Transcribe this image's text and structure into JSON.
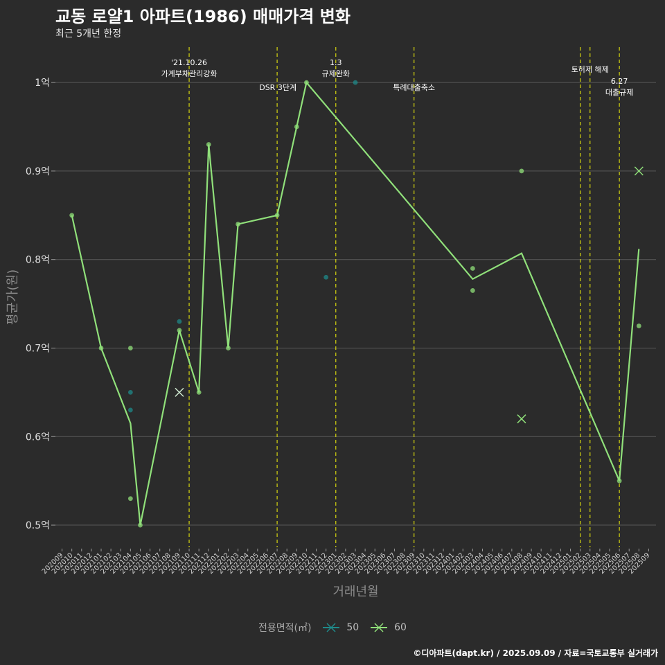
{
  "header": {
    "title": "교동 로얄1 아파트(1986) 매매가격 변화",
    "subtitle": "최근 5개년 한정"
  },
  "caption": "©디아파트(dapt.kr) / 2025.09.09 / 자료=국토교통부 실거래가",
  "legend": {
    "title": "전용면적(㎡)",
    "items": [
      {
        "label": "50",
        "color": "#1f8a8a"
      },
      {
        "label": "60",
        "color": "#90e07a"
      }
    ]
  },
  "chart_data": {
    "type": "line",
    "xlabel": "거래년월",
    "ylabel": "평균가(원)",
    "categories": [
      "202009",
      "202010",
      "202011",
      "202012",
      "202101",
      "202102",
      "202103",
      "202104",
      "202105",
      "202106",
      "202107",
      "202108",
      "202109",
      "202110",
      "202111",
      "202112",
      "202201",
      "202202",
      "202203",
      "202204",
      "202205",
      "202206",
      "202207",
      "202208",
      "202209",
      "202210",
      "202211",
      "202212",
      "202301",
      "202302",
      "202303",
      "202304",
      "202305",
      "202306",
      "202307",
      "202308",
      "202309",
      "202310",
      "202311",
      "202312",
      "202401",
      "202402",
      "202403",
      "202404",
      "202405",
      "202406",
      "202407",
      "202408",
      "202409",
      "202410",
      "202411",
      "202412",
      "202501",
      "202502",
      "202503",
      "202504",
      "202505",
      "202506",
      "202507",
      "202508",
      "202509"
    ],
    "ylim": [
      0.475,
      1.04
    ],
    "yticks": [
      {
        "value": 0.5,
        "label": "0.5억"
      },
      {
        "value": 0.6,
        "label": "0.6억"
      },
      {
        "value": 0.7,
        "label": "0.7억"
      },
      {
        "value": 0.8,
        "label": "0.8억"
      },
      {
        "value": 0.9,
        "label": "0.9억"
      },
      {
        "value": 1.0,
        "label": "1억"
      }
    ],
    "series": [
      {
        "name": "60",
        "color": "#90e07a",
        "line": [
          {
            "x": "202010",
            "y": 0.85
          },
          {
            "x": "202101",
            "y": 0.7
          },
          {
            "x": "202104",
            "y": 0.615
          },
          {
            "x": "202105",
            "y": 0.5
          },
          {
            "x": "202109",
            "y": 0.72
          },
          {
            "x": "202111",
            "y": 0.65
          },
          {
            "x": "202112",
            "y": 0.93
          },
          {
            "x": "202202",
            "y": 0.7
          },
          {
            "x": "202203",
            "y": 0.84
          },
          {
            "x": "202207",
            "y": 0.85
          },
          {
            "x": "202210",
            "y": 1.0
          },
          {
            "x": "202403",
            "y": 0.778
          },
          {
            "x": "202408",
            "y": 0.807
          },
          {
            "x": "202506",
            "y": 0.55
          },
          {
            "x": "202508",
            "y": 0.812
          }
        ],
        "points": [
          {
            "x": "202010",
            "y": 0.85
          },
          {
            "x": "202101",
            "y": 0.7
          },
          {
            "x": "202104",
            "y": 0.7
          },
          {
            "x": "202104",
            "y": 0.53
          },
          {
            "x": "202105",
            "y": 0.5
          },
          {
            "x": "202109",
            "y": 0.72
          },
          {
            "x": "202111",
            "y": 0.65
          },
          {
            "x": "202112",
            "y": 0.93
          },
          {
            "x": "202202",
            "y": 0.7
          },
          {
            "x": "202203",
            "y": 0.84
          },
          {
            "x": "202207",
            "y": 0.85
          },
          {
            "x": "202209",
            "y": 0.95
          },
          {
            "x": "202210",
            "y": 1.0
          },
          {
            "x": "202403",
            "y": 0.79
          },
          {
            "x": "202403",
            "y": 0.765
          },
          {
            "x": "202408",
            "y": 0.9
          },
          {
            "x": "202506",
            "y": 0.55
          },
          {
            "x": "202508",
            "y": 0.725
          }
        ],
        "cancelled": [
          {
            "x": "202408",
            "y": 0.62
          },
          {
            "x": "202508",
            "y": 0.9
          }
        ]
      },
      {
        "name": "50",
        "color": "#1f8a8a",
        "points": [
          {
            "x": "202104",
            "y": 0.65
          },
          {
            "x": "202104",
            "y": 0.63
          },
          {
            "x": "202109",
            "y": 0.73
          },
          {
            "x": "202212",
            "y": 0.78
          },
          {
            "x": "202303",
            "y": 1.0
          }
        ],
        "cancelled": [
          {
            "x": "202109",
            "y": 0.65
          }
        ]
      }
    ],
    "events": [
      {
        "x": "202110",
        "lines": [
          "'21.10.26",
          "가계부채관리강화"
        ],
        "pos": "top"
      },
      {
        "x": "202207",
        "lines": [
          "DSR 3단계"
        ],
        "pos": "mid",
        "anchor": "end"
      },
      {
        "x": "202301",
        "lines": [
          "1.3",
          "규제완화"
        ],
        "pos": "top"
      },
      {
        "x": "202309",
        "lines": [
          "특례대출축소"
        ],
        "pos": "mid"
      },
      {
        "x": "202502",
        "lines": [],
        "pos": "none"
      },
      {
        "x": "202503",
        "lines": [
          "토허제 해제"
        ],
        "pos": "high"
      },
      {
        "x": "202506",
        "lines": [
          "6.27",
          "대출규제"
        ],
        "pos": "low"
      }
    ]
  }
}
